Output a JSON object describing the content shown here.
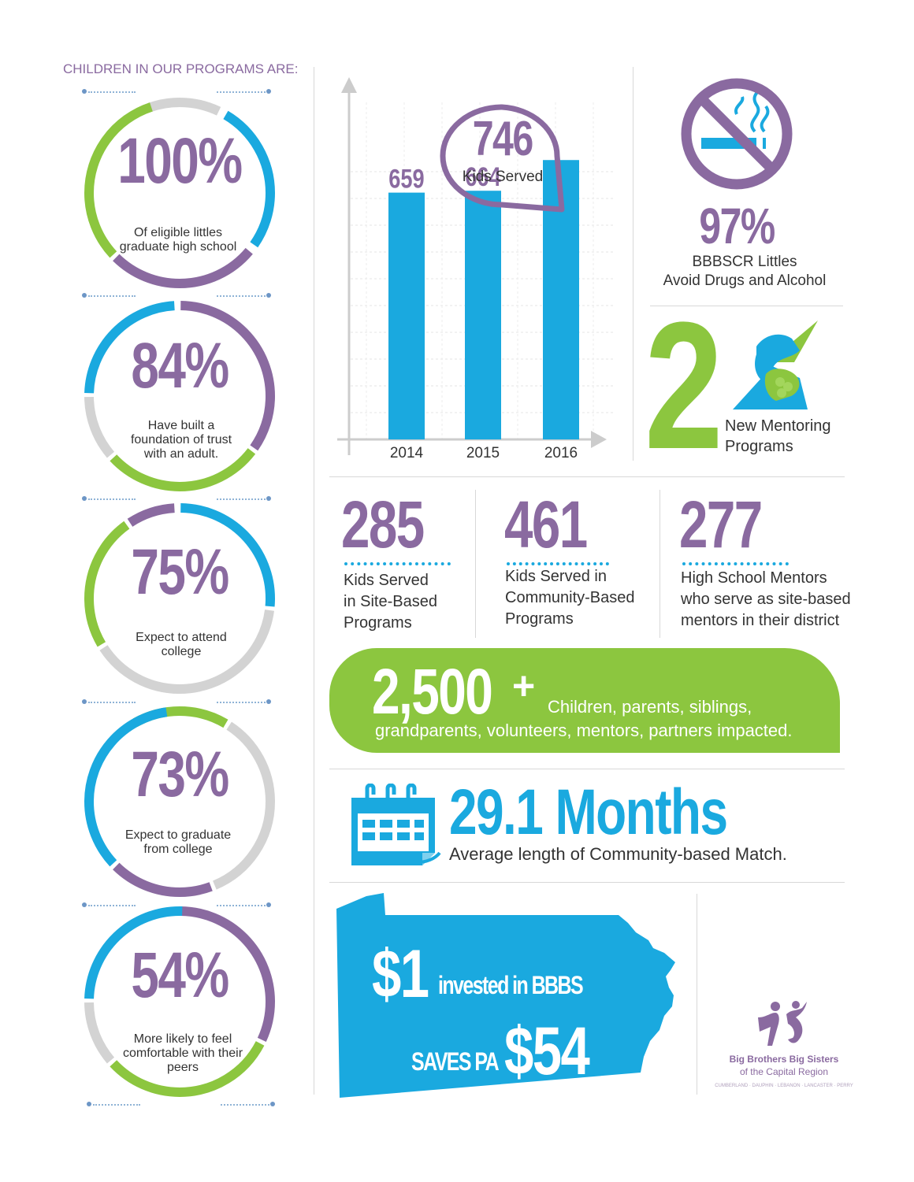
{
  "header": {
    "title": "CHILDREN IN OUR PROGRAMS ARE:"
  },
  "rings": [
    {
      "pct": "100%",
      "label": "Of eligible littles graduate high school"
    },
    {
      "pct": "84%",
      "label": "Have built a foundation of trust with an adult."
    },
    {
      "pct": "75%",
      "label": "Expect to attend college"
    },
    {
      "pct": "73%",
      "label": "Expect to graduate from college"
    },
    {
      "pct": "54%",
      "label": "More likely to feel comfortable with their peers"
    }
  ],
  "colors": {
    "purple": "#8a6aa0",
    "blue": "#1aa9df",
    "green": "#8cc63f",
    "gray": "#d3d3d3"
  },
  "chart_data": {
    "type": "bar",
    "categories": [
      "2014",
      "2015",
      "2016"
    ],
    "values": [
      659,
      664,
      746
    ],
    "data_labels": [
      "659",
      "664",
      ""
    ],
    "callout": {
      "value": "746",
      "label": "Kids Served"
    },
    "ylim": [
      0,
      900
    ],
    "grid": true,
    "bar_color": "#1aa9df"
  },
  "drugs": {
    "icon": "no-smoking-icon",
    "pct": "97%",
    "line1": "BBBSCR Littles",
    "line2": "Avoid Drugs and Alcohol"
  },
  "mentoring": {
    "num": "2",
    "icon": "handshake-icon",
    "line1": "New Mentoring",
    "line2": "Programs"
  },
  "stats": [
    {
      "num": "285",
      "lines": [
        "Kids Served",
        "in Site-Based",
        "Programs"
      ]
    },
    {
      "num": "461",
      "lines": [
        "Kids Served in",
        "Community-Based",
        "Programs"
      ]
    },
    {
      "num": "277",
      "lines": [
        "High School Mentors",
        "who serve as site-based",
        "mentors in their district"
      ]
    }
  ],
  "impact": {
    "num": "2,500",
    "plus": "+",
    "line1": "Children, parents, siblings,",
    "line2": "grandparents, volunteers, mentors, partners impacted."
  },
  "months": {
    "icon": "calendar-icon",
    "num": "29.1 Months",
    "label": "Average length of Community-based Match."
  },
  "roi": {
    "big1": "$1",
    "line1": "invested in BBBS",
    "line2": "SAVES PA",
    "big2": "$54"
  },
  "logo": {
    "line1": "Big Brothers Big Sisters",
    "line2": "of the Capital Region",
    "counties": "CUMBERLAND · DAUPHIN · LEBANON · LANCASTER · PERRY"
  }
}
